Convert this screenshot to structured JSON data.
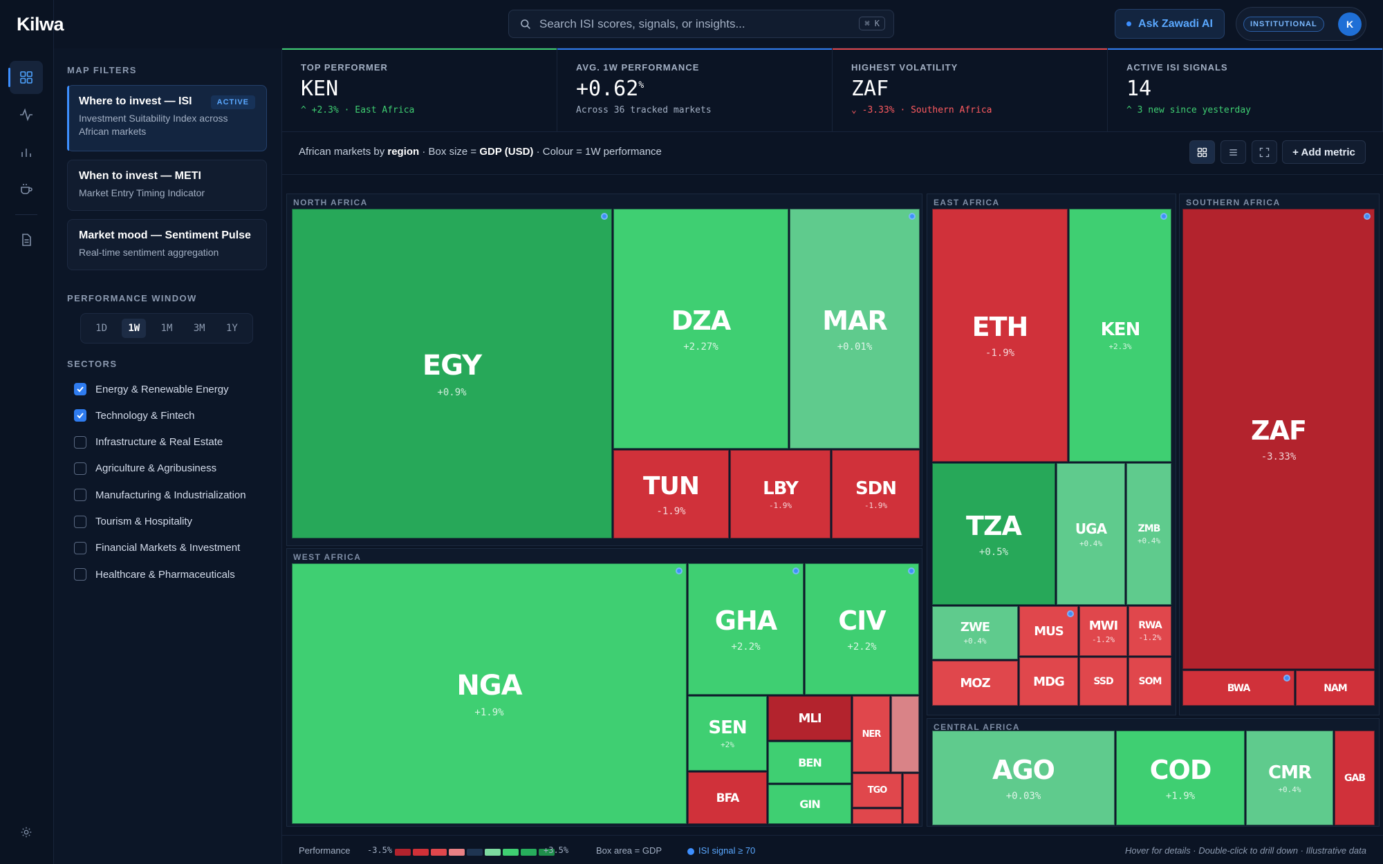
{
  "app": {
    "logo": "Kilwa"
  },
  "rail": {
    "items": [
      "grid-icon",
      "pulse-icon",
      "bar-chart-icon",
      "cup-icon",
      "document-icon"
    ],
    "bottom": "settings-icon"
  },
  "search": {
    "placeholder": "Search ISI scores, signals, or insights...",
    "shortcut": "⌘ K"
  },
  "header": {
    "ask_label": "Ask Zawadi AI",
    "tier": "INSTITUTIONAL",
    "avatar": "K"
  },
  "filters": {
    "title": "MAP FILTERS",
    "cards": [
      {
        "title": "Where to invest — ISI",
        "desc": "Investment Suitability Index across African markets",
        "badge": "ACTIVE"
      },
      {
        "title": "When to invest — METI",
        "desc": "Market Entry Timing Indicator"
      },
      {
        "title": "Market mood — Sentiment Pulse",
        "desc": "Real-time sentiment aggregation"
      }
    ],
    "window_title": "PERFORMANCE WINDOW",
    "windows": [
      "1D",
      "1W",
      "1M",
      "3M",
      "1Y"
    ],
    "window_selected": "1W",
    "sectors_title": "SECTORS",
    "sectors": [
      {
        "label": "Energy & Renewable Energy",
        "checked": true
      },
      {
        "label": "Technology & Fintech",
        "checked": true
      },
      {
        "label": "Infrastructure & Real Estate",
        "checked": false
      },
      {
        "label": "Agriculture & Agribusiness",
        "checked": false
      },
      {
        "label": "Manufacturing & Industrialization",
        "checked": false
      },
      {
        "label": "Tourism & Hospitality",
        "checked": false
      },
      {
        "label": "Financial Markets & Investment",
        "checked": false
      },
      {
        "label": "Healthcare & Pharmaceuticals",
        "checked": false
      }
    ]
  },
  "kpis": [
    {
      "label": "TOP PERFORMER",
      "value": "KEN",
      "sub": "^ +2.3% · East Africa",
      "color": "#3fcf72"
    },
    {
      "label": "AVG. 1W PERFORMANCE",
      "value": "+0.62",
      "unit": "%",
      "sub": "Across 36 tracked markets",
      "color": "#2f7cf0"
    },
    {
      "label": "HIGHEST VOLATILITY",
      "value": "ZAF",
      "sub": "⌄ -3.33% · Southern Africa",
      "color": "#e0474c"
    },
    {
      "label": "ACTIVE ISI SIGNALS",
      "value": "14",
      "sub": "^ 3 new since yesterday",
      "color": "#2f7cf0"
    }
  ],
  "treemap": {
    "caption_pre": "African markets by ",
    "caption_region": "region",
    "caption_mid": " · Box size = ",
    "caption_gdp": "GDP (USD)",
    "caption_post": " · Colour = 1W performance",
    "add_metric": "+ Add metric",
    "regions": [
      "NORTH AFRICA",
      "EAST AFRICA",
      "SOUTHERN AFRICA",
      "WEST AFRICA",
      "CENTRAL AFRICA"
    ],
    "tiles": [
      {
        "code": "EGY",
        "perf": "+0.9%",
        "signal": true
      },
      {
        "code": "DZA",
        "perf": "+2.27%"
      },
      {
        "code": "MAR",
        "perf": "+0.01%",
        "signal": true
      },
      {
        "code": "TUN",
        "perf": "-1.9%"
      },
      {
        "code": "LBY",
        "perf": "-1.9%"
      },
      {
        "code": "SDN",
        "perf": "-1.9%"
      },
      {
        "code": "ETH",
        "perf": "-1.9%"
      },
      {
        "code": "KEN",
        "perf": "+2.3%",
        "signal": true
      },
      {
        "code": "TZA",
        "perf": "+0.5%"
      },
      {
        "code": "UGA",
        "perf": "+0.4%"
      },
      {
        "code": "ZMB",
        "perf": "+0.4%"
      },
      {
        "code": "ZWE",
        "perf": "+0.4%"
      },
      {
        "code": "MUS",
        "perf": "",
        "signal": true
      },
      {
        "code": "MWI",
        "perf": "-1.2%"
      },
      {
        "code": "RWA",
        "perf": "-1.2%"
      },
      {
        "code": "MOZ",
        "perf": ""
      },
      {
        "code": "MDG",
        "perf": ""
      },
      {
        "code": "SSD",
        "perf": ""
      },
      {
        "code": "SOM",
        "perf": ""
      },
      {
        "code": "ZAF",
        "perf": "-3.33%",
        "signal": true
      },
      {
        "code": "BWA",
        "perf": "",
        "signal": true
      },
      {
        "code": "NAM",
        "perf": ""
      },
      {
        "code": "NGA",
        "perf": "+1.9%",
        "signal": true
      },
      {
        "code": "GHA",
        "perf": "+2.2%",
        "signal": true
      },
      {
        "code": "CIV",
        "perf": "+2.2%",
        "signal": true
      },
      {
        "code": "SEN",
        "perf": "+2%"
      },
      {
        "code": "MLI",
        "perf": ""
      },
      {
        "code": "NER",
        "perf": ""
      },
      {
        "code": "BEN",
        "perf": ""
      },
      {
        "code": "BFA",
        "perf": ""
      },
      {
        "code": "GIN",
        "perf": ""
      },
      {
        "code": "TGO",
        "perf": ""
      },
      {
        "code": "AGO",
        "perf": "+0.03%"
      },
      {
        "code": "COD",
        "perf": "+1.9%"
      },
      {
        "code": "CMR",
        "perf": "+0.4%"
      },
      {
        "code": "GAB",
        "perf": ""
      }
    ]
  },
  "legend": {
    "performance": "Performance",
    "min": "-3.5%",
    "max": "+3.5%",
    "swatches": [
      "#b3232d",
      "#d03138",
      "#e0474c",
      "#e98185",
      "#1f3552",
      "#7ddba0",
      "#3fcf72",
      "#27ae5c",
      "#1f8f4b"
    ],
    "box_area": "Box area = GDP",
    "signal": "ISI signal ≥ 70",
    "note": "Hover for details · Double-click to drill down · Illustrative data"
  }
}
